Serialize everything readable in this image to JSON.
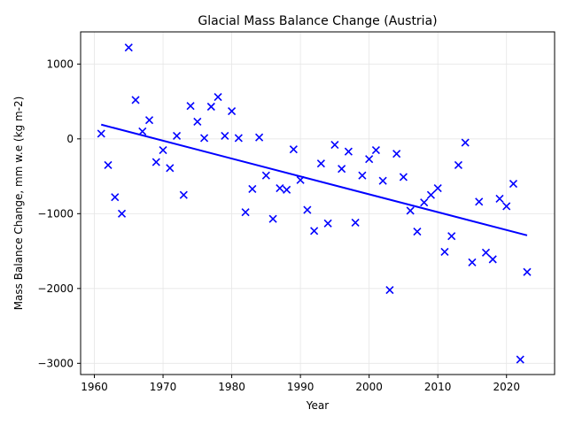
{
  "chart_data": {
    "type": "scatter",
    "title": "Glacial Mass Balance Change (Austria)",
    "xlabel": "Year",
    "ylabel": "Mass Balance Change, mm w.e (kg m-2)",
    "xlim": [
      1958,
      2027
    ],
    "ylim": [
      -3150,
      1430
    ],
    "xticks": [
      1960,
      1970,
      1980,
      1990,
      2000,
      2010,
      2020
    ],
    "yticks": [
      1000,
      0,
      -1000,
      -2000,
      -3000
    ],
    "ytick_labels": [
      "1000",
      "0",
      "−1000",
      "−2000",
      "−3000"
    ],
    "grid": true,
    "marker": "x",
    "marker_color": "#0000ff",
    "trend_color": "#0000ff",
    "series": [
      {
        "x": [
          1961,
          1962,
          1963,
          1964,
          1965,
          1966,
          1967,
          1968,
          1969,
          1970,
          1971,
          1972,
          1973,
          1974,
          1975,
          1976,
          1977,
          1978,
          1979,
          1980,
          1981,
          1982,
          1983,
          1984,
          1985,
          1986,
          1987,
          1988,
          1989,
          1990,
          1991,
          1992,
          1993,
          1994,
          1995,
          1996,
          1997,
          1998,
          1999,
          2000,
          2001,
          2002,
          2003,
          2004,
          2005,
          2006,
          2007,
          2008,
          2009,
          2010,
          2011,
          2012,
          2013,
          2014,
          2015,
          2016,
          2017,
          2018,
          2019,
          2020,
          2021,
          2022,
          2023
        ],
        "y": [
          70,
          -350,
          -780,
          -1000,
          1220,
          520,
          100,
          250,
          -310,
          -150,
          -390,
          40,
          -750,
          440,
          230,
          10,
          430,
          560,
          40,
          370,
          10,
          -980,
          -670,
          20,
          -490,
          -1070,
          -660,
          -680,
          -140,
          -550,
          -950,
          -1230,
          -330,
          -1130,
          -80,
          -400,
          -170,
          -1120,
          -490,
          -270,
          -150,
          -560,
          -2020,
          -200,
          -510,
          -960,
          -1240,
          -850,
          -750,
          -660,
          -1510,
          -1300,
          -350,
          -50,
          -1650,
          -840,
          -1520,
          -1610,
          -800,
          -900,
          -600,
          -2950,
          -1780
        ]
      }
    ],
    "trend": {
      "x": [
        1961,
        2023
      ],
      "y": [
        190,
        -1290
      ]
    }
  }
}
